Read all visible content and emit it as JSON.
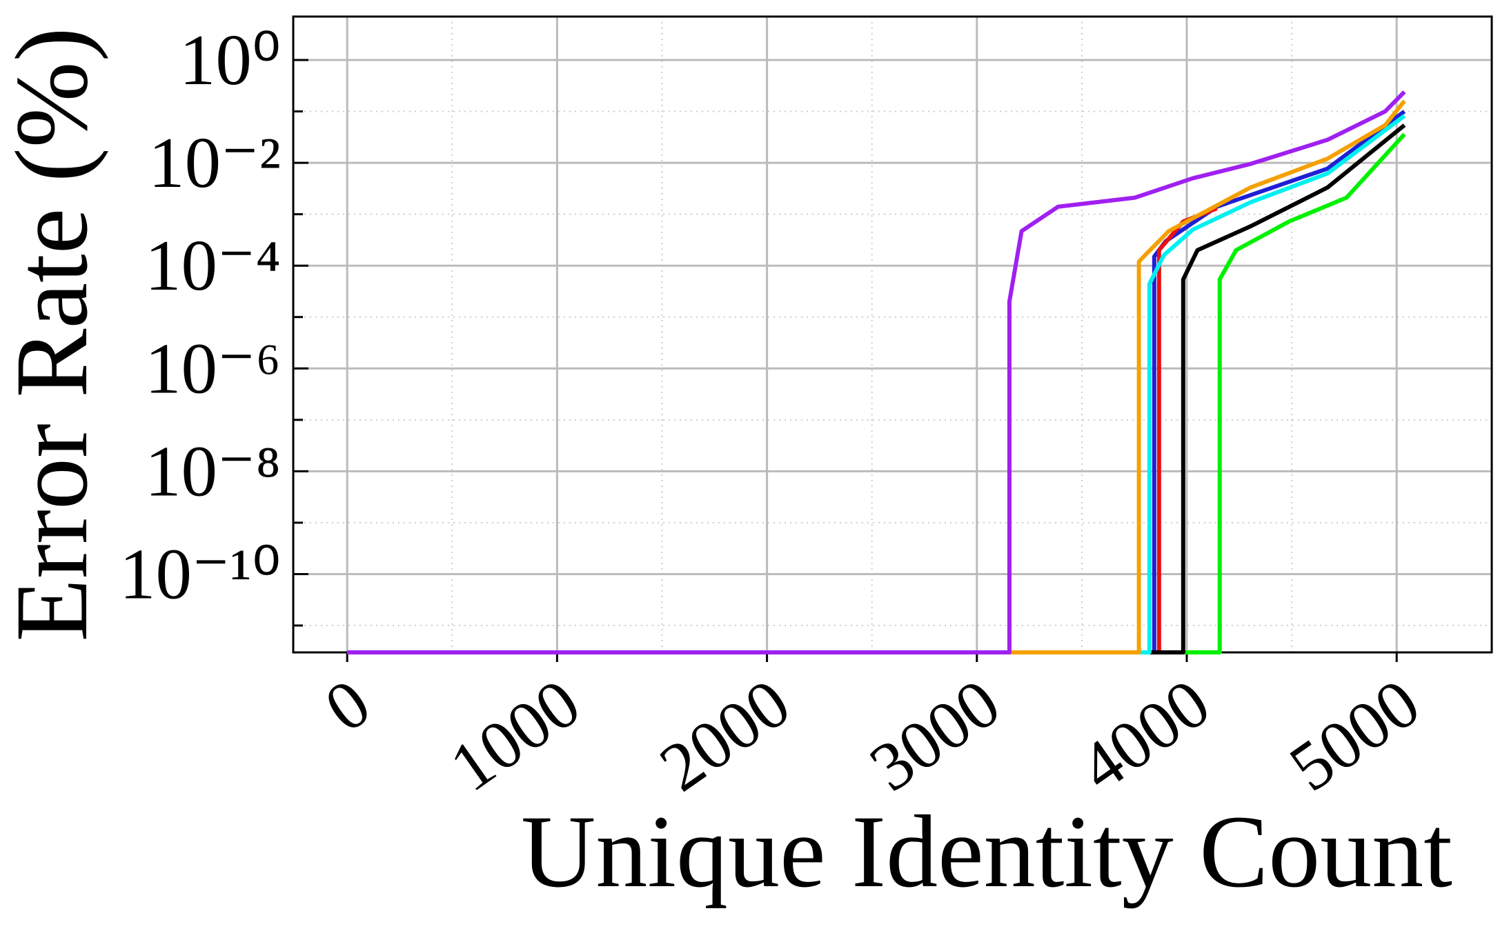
{
  "chart_data": {
    "type": "line",
    "xlabel": "Unique Identity Count",
    "ylabel": "Error Rate (%)",
    "yscale": "log",
    "grid": true,
    "xlim": [
      -257,
      5453
    ],
    "xticks": [
      0,
      1000,
      2000,
      3000,
      4000,
      5000
    ],
    "xminorticks": [
      500,
      1500,
      2500,
      3500,
      4500
    ],
    "ylim": [
      3e-12,
      7
    ],
    "yticks": [
      {
        "value": 1,
        "label": "10⁰"
      },
      {
        "value": 0.01,
        "label": "10⁻²"
      },
      {
        "value": 0.0001,
        "label": "10⁻⁴"
      },
      {
        "value": 1e-06,
        "label": "10⁻⁶"
      },
      {
        "value": 1e-08,
        "label": "10⁻⁸"
      },
      {
        "value": 1e-10,
        "label": "10⁻¹⁰"
      }
    ],
    "yminorticks": [
      0.1,
      0.001,
      1e-05,
      1e-07,
      1e-09,
      1e-11
    ],
    "series": [
      {
        "color": "#1f1fd6",
        "x": [
          0,
          3845,
          3845,
          3900,
          4143,
          4670,
          5037
        ],
        "values": [
          3e-12,
          3e-12,
          0.00015,
          0.0003,
          0.0014,
          0.0077,
          0.1
        ]
      },
      {
        "color": "#e81010",
        "x": [
          0,
          3868,
          3868,
          3983,
          4143
        ],
        "values": [
          3e-12,
          3e-12,
          0.0002,
          0.00072,
          0.0013
        ]
      },
      {
        "color": "#00f000",
        "x": [
          0,
          4157,
          4157,
          4235,
          4487,
          4761,
          5037
        ],
        "values": [
          3e-12,
          3e-12,
          5.4e-05,
          0.0002,
          0.00072,
          0.0021,
          0.036
        ]
      },
      {
        "color": "#000000",
        "x": [
          0,
          3983,
          3983,
          4051,
          4303,
          4670,
          5037
        ],
        "values": [
          3e-12,
          3e-12,
          5.4e-05,
          0.0002,
          0.00058,
          0.0033,
          0.054
        ]
      },
      {
        "color": "#00f0f0",
        "x": [
          0,
          3822,
          3822,
          3891,
          4028,
          4303,
          4670,
          5037
        ],
        "values": [
          3e-12,
          3e-12,
          4.4e-05,
          0.00016,
          0.0005,
          0.0017,
          0.0062,
          0.082
        ]
      },
      {
        "color": "#f5a000",
        "x": [
          0,
          3772,
          3772,
          3914,
          4303,
          4670,
          4945,
          5037
        ],
        "values": [
          3e-12,
          3e-12,
          0.00012,
          0.00047,
          0.0033,
          0.012,
          0.054,
          0.16
        ]
      },
      {
        "color": "#a020f0",
        "x": [
          0,
          3155,
          3155,
          3213,
          3387,
          3753,
          4028,
          4303,
          4670,
          4945,
          5037
        ],
        "values": [
          3e-12,
          3e-12,
          2e-05,
          0.00047,
          0.0014,
          0.0021,
          0.005,
          0.0095,
          0.028,
          0.1,
          0.24
        ]
      }
    ]
  }
}
